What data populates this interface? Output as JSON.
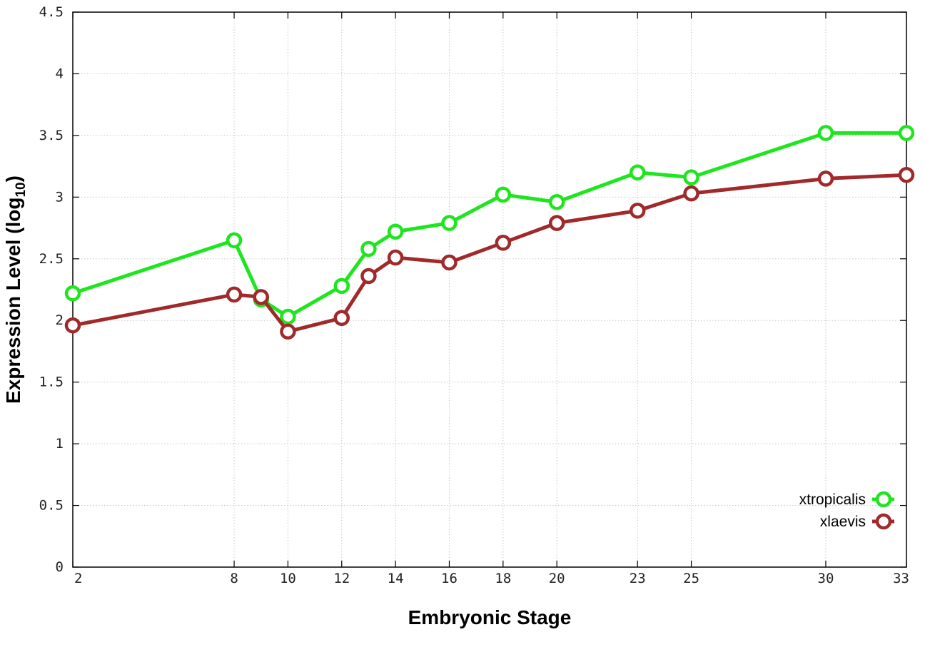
{
  "chart_data": {
    "type": "line",
    "xlabel": "Embryonic Stage",
    "ylabel_main": "Expression Level (log",
    "ylabel_sub": "10",
    "ylabel_close": ")",
    "x": [
      2,
      8,
      9,
      10,
      12,
      13,
      14,
      16,
      18,
      20,
      23,
      25,
      30,
      33
    ],
    "x_ticks": [
      2,
      8,
      10,
      12,
      14,
      16,
      18,
      20,
      23,
      25,
      30,
      33
    ],
    "xlim": [
      2,
      33
    ],
    "y_ticks": [
      "0",
      "0.5",
      "1",
      "1.5",
      "2",
      "2.5",
      "3",
      "3.5",
      "4",
      "4.5"
    ],
    "ylim": [
      0,
      4.5
    ],
    "grid": true,
    "legend_position": "bottom-right",
    "series": [
      {
        "name": "xtropicalis",
        "color": "#1ee61e",
        "values": [
          2.22,
          2.65,
          2.17,
          2.03,
          2.28,
          2.58,
          2.72,
          2.79,
          3.02,
          2.96,
          3.2,
          3.16,
          3.52,
          3.52
        ]
      },
      {
        "name": "xlaevis",
        "color": "#a02a2a",
        "values": [
          1.96,
          2.21,
          2.19,
          1.91,
          2.02,
          2.36,
          2.51,
          2.47,
          2.63,
          2.79,
          2.89,
          3.03,
          3.15,
          3.18
        ]
      }
    ]
  }
}
